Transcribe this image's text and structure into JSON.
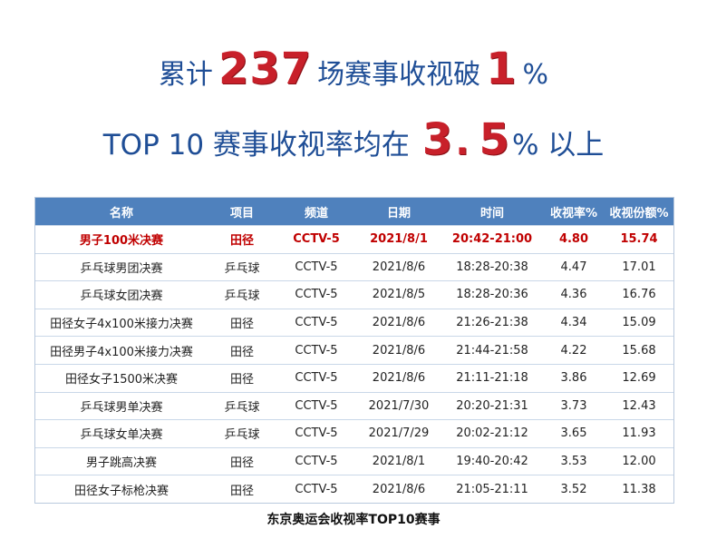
{
  "headline1": {
    "prefix": "累计",
    "number": "237",
    "middle": "场赛事收视破",
    "number2": "1",
    "suffix": "%"
  },
  "headline2": {
    "prefix": "TOP 10 赛事收视率均在",
    "number_a": "3",
    "dot": ".",
    "number_b": "5",
    "suffix": "% 以上"
  },
  "table": {
    "headers": [
      "名称",
      "项目",
      "频道",
      "日期",
      "时间",
      "收视率%",
      "收视份额%"
    ],
    "rows": [
      [
        "男子100米决赛",
        "田径",
        "CCTV-5",
        "2021/8/1",
        "20:42-21:00",
        "4.80",
        "15.74"
      ],
      [
        "乒乓球男团决赛",
        "乒乓球",
        "CCTV-5",
        "2021/8/6",
        "18:28-20:38",
        "4.47",
        "17.01"
      ],
      [
        "乒乓球女团决赛",
        "乒乓球",
        "CCTV-5",
        "2021/8/5",
        "18:28-20:36",
        "4.36",
        "16.76"
      ],
      [
        "田径女子4x100米接力决赛",
        "田径",
        "CCTV-5",
        "2021/8/6",
        "21:26-21:38",
        "4.34",
        "15.09"
      ],
      [
        "田径男子4x100米接力决赛",
        "田径",
        "CCTV-5",
        "2021/8/6",
        "21:44-21:58",
        "4.22",
        "15.68"
      ],
      [
        "田径女子1500米决赛",
        "田径",
        "CCTV-5",
        "2021/8/6",
        "21:11-21:18",
        "3.86",
        "12.69"
      ],
      [
        "乒乓球男单决赛",
        "乒乓球",
        "CCTV-5",
        "2021/7/30",
        "20:20-21:31",
        "3.73",
        "12.43"
      ],
      [
        "乒乓球女单决赛",
        "乒乓球",
        "CCTV-5",
        "2021/7/29",
        "20:02-21:12",
        "3.65",
        "11.93"
      ],
      [
        "男子跳高决赛",
        "田径",
        "CCTV-5",
        "2021/8/1",
        "19:40-20:42",
        "3.53",
        "12.00"
      ],
      [
        "田径女子标枪决赛",
        "田径",
        "CCTV-5",
        "2021/8/6",
        "21:05-21:11",
        "3.52",
        "11.38"
      ]
    ]
  },
  "caption": "东京奥运会收视率TOP10赛事",
  "colors": {
    "headline": "#1f4e96",
    "accent_red": "#c8202a",
    "header_bg": "#4f81bd",
    "highlight_text": "#c00000"
  }
}
